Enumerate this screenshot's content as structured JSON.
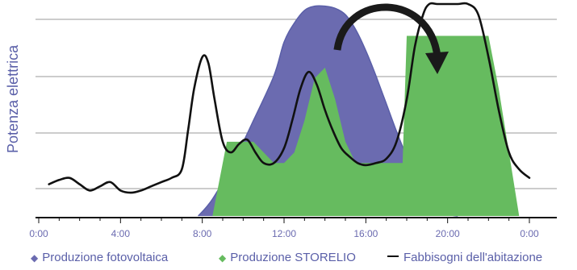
{
  "chart_data": {
    "type": "area",
    "title": "",
    "xlabel": "",
    "ylabel": "Potenza elettrica",
    "x_ticks": [
      "0:00",
      "4:00",
      "8:00",
      "12:00",
      "16:00",
      "20:00",
      "0:00"
    ],
    "x_range_hours": [
      0,
      24
    ],
    "y_range": [
      0,
      1
    ],
    "grid": "horizontal",
    "legend_position": "bottom",
    "colors": {
      "fotovoltaica": "#6b6bb0",
      "storelio": "#66bb5f",
      "fabbisogni": "#111111",
      "label": "#5a5fa8"
    },
    "series": [
      {
        "name": "Produzione fotovoltaica",
        "kind": "area",
        "x": [
          7.8,
          8.5,
          9.5,
          10.5,
          11.5,
          12.0,
          12.5,
          13.0,
          13.5,
          14.0,
          14.5,
          15.0,
          15.5,
          16.0,
          16.5,
          17.0,
          17.5,
          18.0,
          18.5,
          19.0,
          19.5,
          20.0,
          20.5
        ],
        "y": [
          0.0,
          0.08,
          0.25,
          0.45,
          0.66,
          0.82,
          0.91,
          0.97,
          0.99,
          0.99,
          0.98,
          0.95,
          0.88,
          0.78,
          0.66,
          0.53,
          0.4,
          0.28,
          0.18,
          0.1,
          0.05,
          0.01,
          0.0
        ]
      },
      {
        "name": "Produzione STORELIO",
        "kind": "area",
        "x": [
          8.5,
          9.2,
          10.0,
          10.5,
          11.0,
          11.5,
          12.0,
          12.5,
          13.0,
          13.5,
          14.0,
          14.5,
          15.0,
          15.5,
          16.0,
          16.5,
          17.0,
          17.5,
          17.8,
          18.0,
          18.5,
          22.0,
          22.5,
          23.0,
          23.5
        ],
        "y": [
          0.0,
          0.35,
          0.35,
          0.35,
          0.3,
          0.25,
          0.25,
          0.3,
          0.45,
          0.65,
          0.7,
          0.55,
          0.35,
          0.25,
          0.25,
          0.25,
          0.25,
          0.25,
          0.25,
          0.85,
          0.85,
          0.85,
          0.6,
          0.3,
          0.0
        ]
      },
      {
        "name": "Fabbisogni dell'abitazione",
        "kind": "line",
        "x": [
          0.5,
          1.0,
          1.5,
          2.0,
          2.5,
          3.0,
          3.5,
          4.0,
          4.5,
          5.0,
          5.5,
          6.0,
          6.5,
          7.0,
          7.3,
          7.6,
          8.0,
          8.3,
          8.6,
          9.0,
          9.4,
          9.8,
          10.2,
          10.6,
          11.0,
          11.5,
          12.0,
          12.4,
          12.8,
          13.2,
          13.6,
          14.0,
          14.4,
          14.8,
          15.2,
          15.6,
          16.0,
          16.5,
          17.0,
          17.5,
          18.0,
          18.4,
          18.8,
          19.1,
          19.5,
          20.0,
          20.5,
          21.0,
          21.5,
          22.0,
          22.5,
          23.0,
          23.5,
          24.0
        ],
        "y": [
          0.15,
          0.17,
          0.18,
          0.15,
          0.12,
          0.14,
          0.16,
          0.12,
          0.11,
          0.12,
          0.14,
          0.16,
          0.18,
          0.22,
          0.4,
          0.6,
          0.75,
          0.72,
          0.55,
          0.35,
          0.3,
          0.34,
          0.36,
          0.3,
          0.25,
          0.25,
          0.32,
          0.45,
          0.6,
          0.68,
          0.62,
          0.5,
          0.4,
          0.32,
          0.28,
          0.25,
          0.24,
          0.25,
          0.27,
          0.35,
          0.55,
          0.8,
          0.95,
          1.0,
          1.0,
          1.0,
          1.0,
          1.0,
          0.95,
          0.75,
          0.5,
          0.3,
          0.22,
          0.18
        ]
      }
    ],
    "annotations": [
      {
        "type": "curved-arrow",
        "from_x": 14.6,
        "to_x": 19.5
      }
    ]
  }
}
